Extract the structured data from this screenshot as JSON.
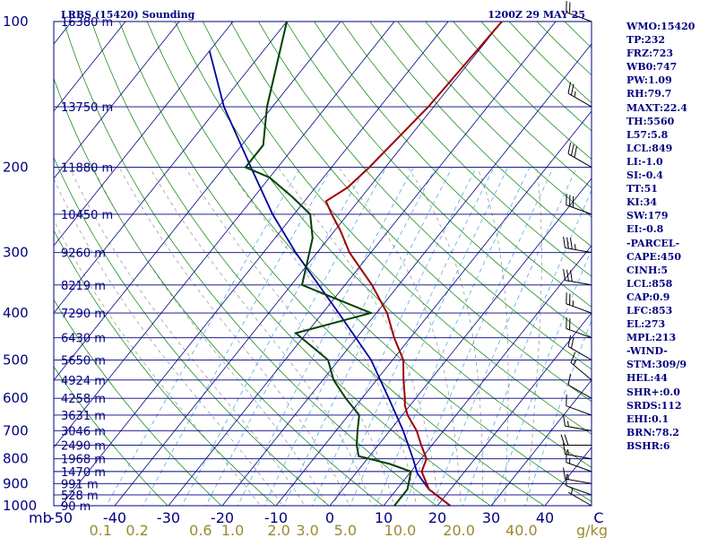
{
  "header": {
    "station": "LRBS (15420) Sounding",
    "time": "1200Z 29 MAY 25"
  },
  "indices": [
    "WMO:15420",
    "TP:232",
    "FRZ:723",
    "WB0:747",
    "PW:1.09",
    "RH:79.7",
    "MAXT:22.4",
    "TH:5560",
    "L57:5.8",
    "LCL:849",
    "LI:-1.0",
    "SI:-0.4",
    "TT:51",
    "KI:34",
    "SW:179",
    "EI:-0.8",
    "-PARCEL-",
    "CAPE:450",
    "CINH:5",
    "LCL:858",
    "CAP:0.9",
    "LFC:853",
    "EL:273",
    "MPL:213",
    "-WIND-",
    "STM:309/9",
    "HEL:44",
    "SHR+:0.0",
    "SRDS:112",
    "EHI:0.1",
    "BRN:78.2",
    "BSHR:6"
  ],
  "colors": {
    "temperature": "#a00000",
    "dewpoint": "#004000",
    "parcel": "#0000a0",
    "isobar_isotherm": "#000080",
    "dry_adiabat": "#008000",
    "moist_adiabat": "#808080",
    "mixing_ratio": "#40a0e0",
    "wind_barb": "#000000"
  },
  "chart_data": {
    "type": "skew-t",
    "pressure_unit_label": "mb",
    "mixing_ratio_unit_label": "g/kg",
    "pressure_ticks": [
      100,
      200,
      300,
      400,
      500,
      600,
      700,
      800,
      900,
      1000
    ],
    "temperature_ticks": [
      -50,
      -40,
      -30,
      -20,
      -10,
      0,
      10,
      20,
      30,
      40,
      "C"
    ],
    "mixing_ratio_ticks": [
      "0.1",
      "0.2",
      "0.6",
      "1.0",
      "2.0",
      "3.0",
      "5.0",
      "10.0",
      "20.0",
      "40.0"
    ],
    "height_levels": [
      {
        "p": 100,
        "label": "16380 m"
      },
      {
        "p": 150,
        "label": "13750 m"
      },
      {
        "p": 200,
        "label": "11880 m"
      },
      {
        "p": 250,
        "label": "10450 m"
      },
      {
        "p": 300,
        "label": "9260 m"
      },
      {
        "p": 350,
        "label": "8219 m"
      },
      {
        "p": 400,
        "label": "7290 m"
      },
      {
        "p": 450,
        "label": "6430 m"
      },
      {
        "p": 500,
        "label": "5650 m"
      },
      {
        "p": 550,
        "label": "4924 m"
      },
      {
        "p": 600,
        "label": "4258 m"
      },
      {
        "p": 650,
        "label": "3631 m"
      },
      {
        "p": 700,
        "label": "3046 m"
      },
      {
        "p": 750,
        "label": "2490 m"
      },
      {
        "p": 800,
        "label": "1968 m"
      },
      {
        "p": 850,
        "label": "1470 m"
      },
      {
        "p": 900,
        "label": "991 m"
      },
      {
        "p": 950,
        "label": "528 m"
      },
      {
        "p": 1000,
        "label": "90 m"
      }
    ],
    "temperature_profile": [
      {
        "p": 1000,
        "t": 22.4
      },
      {
        "p": 925,
        "t": 16
      },
      {
        "p": 850,
        "t": 12
      },
      {
        "p": 800,
        "t": 11
      },
      {
        "p": 750,
        "t": 8
      },
      {
        "p": 700,
        "t": 5
      },
      {
        "p": 650,
        "t": 1
      },
      {
        "p": 620,
        "t": -1
      },
      {
        "p": 600,
        "t": -2
      },
      {
        "p": 550,
        "t": -5
      },
      {
        "p": 500,
        "t": -8
      },
      {
        "p": 450,
        "t": -13
      },
      {
        "p": 400,
        "t": -18
      },
      {
        "p": 350,
        "t": -25
      },
      {
        "p": 300,
        "t": -34
      },
      {
        "p": 270,
        "t": -39
      },
      {
        "p": 250,
        "t": -43
      },
      {
        "p": 235,
        "t": -46
      },
      {
        "p": 220,
        "t": -44
      },
      {
        "p": 200,
        "t": -43
      },
      {
        "p": 150,
        "t": -41
      },
      {
        "p": 100,
        "t": -40
      }
    ],
    "dewpoint_profile": [
      {
        "p": 1000,
        "t": 12
      },
      {
        "p": 925,
        "t": 12
      },
      {
        "p": 850,
        "t": 10
      },
      {
        "p": 820,
        "t": 5
      },
      {
        "p": 790,
        "t": -2
      },
      {
        "p": 750,
        "t": -4
      },
      {
        "p": 700,
        "t": -6
      },
      {
        "p": 650,
        "t": -8
      },
      {
        "p": 600,
        "t": -13
      },
      {
        "p": 550,
        "t": -18
      },
      {
        "p": 500,
        "t": -22
      },
      {
        "p": 440,
        "t": -32
      },
      {
        "p": 400,
        "t": -21
      },
      {
        "p": 350,
        "t": -38
      },
      {
        "p": 320,
        "t": -40
      },
      {
        "p": 280,
        "t": -43
      },
      {
        "p": 250,
        "t": -47
      },
      {
        "p": 230,
        "t": -53
      },
      {
        "p": 210,
        "t": -60
      },
      {
        "p": 200,
        "t": -66
      },
      {
        "p": 180,
        "t": -66
      },
      {
        "p": 150,
        "t": -71
      },
      {
        "p": 100,
        "t": -80
      }
    ],
    "parcel_profile": [
      {
        "p": 1000,
        "t": 22.4
      },
      {
        "p": 925,
        "t": 16
      },
      {
        "p": 858,
        "t": 11.5
      },
      {
        "p": 800,
        "t": 8.5
      },
      {
        "p": 700,
        "t": 2.5
      },
      {
        "p": 600,
        "t": -5
      },
      {
        "p": 500,
        "t": -14
      },
      {
        "p": 400,
        "t": -27
      },
      {
        "p": 300,
        "t": -44
      },
      {
        "p": 250,
        "t": -54
      },
      {
        "p": 200,
        "t": -65
      },
      {
        "p": 150,
        "t": -79
      },
      {
        "p": 115,
        "t": -90
      }
    ],
    "wind_barbs": [
      {
        "p": 1000,
        "dir": 300,
        "speed_kt": 5
      },
      {
        "p": 950,
        "dir": 290,
        "speed_kt": 10
      },
      {
        "p": 900,
        "dir": 280,
        "speed_kt": 15
      },
      {
        "p": 850,
        "dir": 290,
        "speed_kt": 15
      },
      {
        "p": 800,
        "dir": 280,
        "speed_kt": 15
      },
      {
        "p": 750,
        "dir": 270,
        "speed_kt": 20
      },
      {
        "p": 700,
        "dir": 280,
        "speed_kt": 15
      },
      {
        "p": 650,
        "dir": 290,
        "speed_kt": 10
      },
      {
        "p": 600,
        "dir": 300,
        "speed_kt": 10
      },
      {
        "p": 550,
        "dir": 310,
        "speed_kt": 15
      },
      {
        "p": 500,
        "dir": 300,
        "speed_kt": 20
      },
      {
        "p": 450,
        "dir": 290,
        "speed_kt": 20
      },
      {
        "p": 400,
        "dir": 290,
        "speed_kt": 25
      },
      {
        "p": 350,
        "dir": 280,
        "speed_kt": 30
      },
      {
        "p": 300,
        "dir": 280,
        "speed_kt": 35
      },
      {
        "p": 250,
        "dir": 290,
        "speed_kt": 30
      },
      {
        "p": 200,
        "dir": 300,
        "speed_kt": 30
      },
      {
        "p": 150,
        "dir": 300,
        "speed_kt": 25
      },
      {
        "p": 100,
        "dir": 290,
        "speed_kt": 20
      }
    ]
  }
}
